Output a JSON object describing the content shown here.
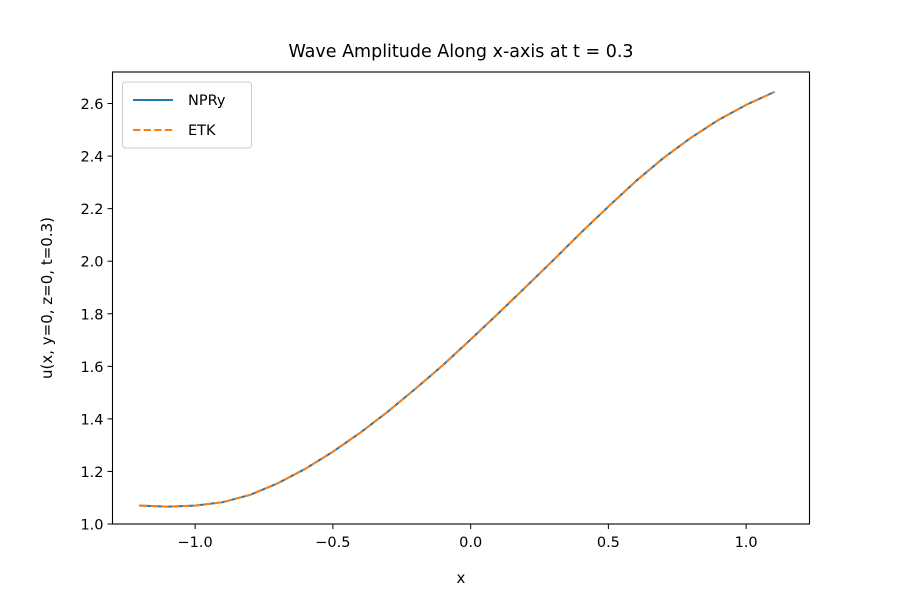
{
  "chart_data": {
    "type": "line",
    "title": "Wave Amplitude Along x-axis at t = 0.3",
    "xlabel": "x",
    "ylabel": "u(x, y=0, z=0, t=0.3)",
    "xlim": [
      -1.3,
      1.23
    ],
    "ylim": [
      1.0,
      2.72
    ],
    "xticks": [
      -1.0,
      -0.5,
      0.0,
      0.5,
      1.0
    ],
    "xtick_labels": [
      "−1.0",
      "−0.5",
      "0.0",
      "0.5",
      "1.0"
    ],
    "yticks": [
      1.0,
      1.2,
      1.4,
      1.6,
      1.8,
      2.0,
      2.2,
      2.4,
      2.6
    ],
    "ytick_labels": [
      "1.0",
      "1.2",
      "1.4",
      "1.6",
      "1.8",
      "2.0",
      "2.2",
      "2.4",
      "2.6"
    ],
    "grid": false,
    "legend_position": "top-left",
    "x": [
      -1.2,
      -1.1,
      -1.0,
      -0.9,
      -0.8,
      -0.7,
      -0.6,
      -0.5,
      -0.4,
      -0.3,
      -0.2,
      -0.1,
      0.0,
      0.1,
      0.2,
      0.3,
      0.4,
      0.5,
      0.6,
      0.7,
      0.8,
      0.9,
      1.0,
      1.1
    ],
    "series": [
      {
        "name": "NPRy",
        "color": "#1f77b4",
        "style": "solid",
        "values": [
          1.07,
          1.066,
          1.07,
          1.083,
          1.111,
          1.155,
          1.21,
          1.275,
          1.348,
          1.428,
          1.515,
          1.605,
          1.702,
          1.801,
          1.902,
          2.004,
          2.108,
          2.208,
          2.305,
          2.393,
          2.47,
          2.538,
          2.595,
          2.643
        ]
      },
      {
        "name": "ETK",
        "color": "#ff7f0e",
        "style": "dashed",
        "values": [
          1.07,
          1.066,
          1.07,
          1.083,
          1.111,
          1.155,
          1.21,
          1.275,
          1.348,
          1.428,
          1.515,
          1.605,
          1.702,
          1.801,
          1.902,
          2.004,
          2.108,
          2.208,
          2.305,
          2.393,
          2.47,
          2.538,
          2.595,
          2.643
        ]
      }
    ]
  }
}
